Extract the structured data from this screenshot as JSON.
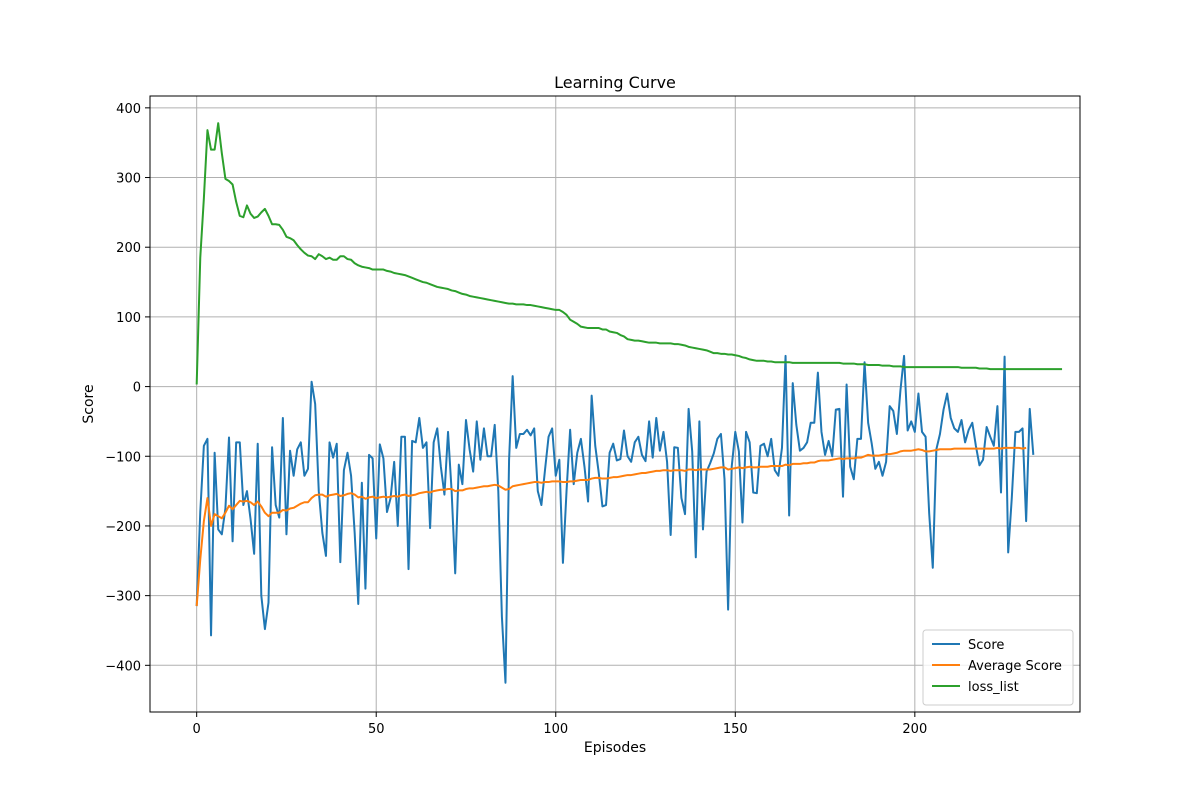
{
  "chart_data": {
    "type": "line",
    "title": "Learning Curve",
    "xlabel": "Episodes",
    "ylabel": "Score",
    "xlim": [
      -13,
      246
    ],
    "ylim": [
      -467,
      417
    ],
    "xticks": [
      0,
      50,
      100,
      150,
      200
    ],
    "yticks": [
      -400,
      -300,
      -200,
      -100,
      0,
      100,
      200,
      300,
      400
    ],
    "grid": true,
    "legend_position": "lower right",
    "series": [
      {
        "name": "Score",
        "color": "#1f77b4",
        "x_start": 0,
        "values": [
          -315,
          -180,
          -85,
          -75,
          -357,
          -95,
          -205,
          -212,
          -175,
          -73,
          -222,
          -80,
          -80,
          -170,
          -150,
          -190,
          -240,
          -82,
          -300,
          -348,
          -310,
          -87,
          -170,
          -188,
          -45,
          -212,
          -92,
          -128,
          -90,
          -80,
          -128,
          -118,
          7,
          -25,
          -150,
          -210,
          -243,
          -80,
          -102,
          -82,
          -252,
          -120,
          -95,
          -128,
          -210,
          -312,
          -138,
          -290,
          -98,
          -103,
          -218,
          -83,
          -103,
          -180,
          -160,
          -108,
          -200,
          -72,
          -72,
          -262,
          -78,
          -80,
          -45,
          -88,
          -80,
          -203,
          -80,
          -60,
          -115,
          -155,
          -65,
          -150,
          -268,
          -112,
          -140,
          -48,
          -90,
          -122,
          -50,
          -105,
          -60,
          -100,
          -100,
          -55,
          -150,
          -330,
          -425,
          -105,
          15,
          -88,
          -68,
          -68,
          -62,
          -70,
          -60,
          -150,
          -170,
          -120,
          -72,
          -60,
          -128,
          -105,
          -253,
          -150,
          -62,
          -140,
          -95,
          -75,
          -115,
          -165,
          -13,
          -85,
          -125,
          -172,
          -170,
          -95,
          -82,
          -106,
          -104,
          -63,
          -100,
          -108,
          -80,
          -72,
          -98,
          -107,
          -50,
          -102,
          -45,
          -92,
          -65,
          -108,
          -213,
          -87,
          -88,
          -160,
          -183,
          -32,
          -93,
          -245,
          -50,
          -205,
          -122,
          -110,
          -96,
          -75,
          -68,
          -133,
          -320,
          -115,
          -65,
          -93,
          -195,
          -65,
          -80,
          -152,
          -153,
          -85,
          -82,
          -100,
          -75,
          -120,
          -128,
          -88,
          44,
          -185,
          5,
          -55,
          -92,
          -88,
          -80,
          -52,
          -52,
          20,
          -65,
          -98,
          -78,
          -100,
          -33,
          -32,
          -158,
          3,
          -115,
          -133,
          -75,
          -75,
          35,
          -52,
          -82,
          -118,
          -108,
          -128,
          -108,
          -28,
          -35,
          -68,
          -5,
          44,
          -63,
          -50,
          -65,
          -10,
          -65,
          -72,
          -182,
          -260,
          -90,
          -68,
          -33,
          -10,
          -45,
          -60,
          -65,
          -48,
          -80,
          -62,
          -52,
          -85,
          -113,
          -105,
          -58,
          -72,
          -85,
          -28,
          -152,
          43,
          -238,
          -160,
          -65,
          -65,
          -60,
          -193,
          -32,
          -98
        ]
      },
      {
        "name": "Average Score",
        "color": "#ff7f0e",
        "x_start": 0,
        "values": [
          -315,
          -248,
          -193,
          -160,
          -200,
          -183,
          -186,
          -189,
          -181,
          -171,
          -176,
          -170,
          -164,
          -165,
          -164,
          -166,
          -170,
          -165,
          -172,
          -181,
          -186,
          -181,
          -181,
          -181,
          -177,
          -178,
          -175,
          -174,
          -171,
          -168,
          -166,
          -166,
          -160,
          -156,
          -155,
          -155,
          -158,
          -156,
          -155,
          -154,
          -157,
          -156,
          -154,
          -153,
          -155,
          -159,
          -158,
          -161,
          -159,
          -158,
          -160,
          -159,
          -158,
          -159,
          -158,
          -157,
          -158,
          -156,
          -155,
          -157,
          -156,
          -155,
          -153,
          -152,
          -151,
          -152,
          -150,
          -149,
          -148,
          -148,
          -147,
          -147,
          -150,
          -149,
          -149,
          -147,
          -146,
          -146,
          -145,
          -144,
          -143,
          -143,
          -142,
          -141,
          -142,
          -145,
          -148,
          -147,
          -143,
          -142,
          -141,
          -140,
          -139,
          -138,
          -137,
          -137,
          -138,
          -137,
          -137,
          -136,
          -136,
          -136,
          -137,
          -137,
          -136,
          -136,
          -135,
          -134,
          -134,
          -134,
          -132,
          -131,
          -131,
          -132,
          -132,
          -131,
          -130,
          -130,
          -129,
          -128,
          -127,
          -127,
          -126,
          -125,
          -124,
          -124,
          -123,
          -122,
          -121,
          -121,
          -120,
          -120,
          -121,
          -120,
          -120,
          -120,
          -121,
          -119,
          -119,
          -120,
          -119,
          -119,
          -119,
          -119,
          -118,
          -117,
          -116,
          -116,
          -119,
          -118,
          -117,
          -116,
          -117,
          -116,
          -115,
          -116,
          -116,
          -115,
          -115,
          -115,
          -114,
          -114,
          -114,
          -114,
          -112,
          -113,
          -111,
          -111,
          -111,
          -110,
          -110,
          -109,
          -109,
          -107,
          -106,
          -106,
          -106,
          -105,
          -104,
          -103,
          -104,
          -103,
          -103,
          -103,
          -102,
          -102,
          -100,
          -98,
          -99,
          -99,
          -99,
          -98,
          -97,
          -97,
          -96,
          -95,
          -93,
          -92,
          -92,
          -92,
          -91,
          -90,
          -91,
          -93,
          -93,
          -92,
          -91,
          -90,
          -90,
          -90,
          -90,
          -89,
          -89,
          -89,
          -89,
          -89,
          -89,
          -89,
          -89,
          -89,
          -89,
          -89,
          -89,
          -88,
          -89,
          -88,
          -88,
          -88,
          -88,
          -88,
          -89,
          -88
        ]
      },
      {
        "name": "loss_list",
        "color": "#2ca02c",
        "x_start": 0,
        "values": [
          3,
          185,
          270,
          368,
          340,
          340,
          378,
          335,
          298,
          295,
          290,
          265,
          245,
          243,
          260,
          248,
          242,
          244,
          250,
          255,
          245,
          233,
          233,
          232,
          225,
          215,
          213,
          210,
          203,
          197,
          192,
          188,
          187,
          183,
          190,
          187,
          183,
          185,
          182,
          182,
          187,
          187,
          183,
          182,
          177,
          174,
          172,
          171,
          170,
          168,
          168,
          168,
          168,
          166,
          165,
          163,
          162,
          161,
          160,
          158,
          156,
          154,
          152,
          150,
          149,
          147,
          145,
          143,
          142,
          141,
          140,
          138,
          137,
          135,
          133,
          132,
          130,
          129,
          128,
          127,
          126,
          125,
          124,
          123,
          122,
          121,
          120,
          119,
          119,
          118,
          118,
          118,
          117,
          117,
          116,
          115,
          114,
          113,
          112,
          111,
          110,
          110,
          107,
          103,
          96,
          93,
          90,
          86,
          85,
          84,
          84,
          84,
          84,
          82,
          82,
          79,
          78,
          77,
          74,
          72,
          68,
          67,
          66,
          66,
          65,
          64,
          63,
          63,
          63,
          62,
          62,
          62,
          62,
          61,
          61,
          60,
          59,
          57,
          56,
          55,
          54,
          53,
          52,
          50,
          48,
          48,
          47,
          47,
          46,
          46,
          45,
          44,
          42,
          41,
          39,
          38,
          37,
          37,
          37,
          36,
          36,
          35,
          35,
          35,
          35,
          35,
          34,
          34,
          34,
          34,
          34,
          34,
          34,
          34,
          34,
          34,
          34,
          34,
          34,
          34,
          33,
          33,
          33,
          33,
          32,
          32,
          32,
          31,
          31,
          31,
          31,
          30,
          30,
          30,
          29,
          29,
          29,
          28,
          28,
          28,
          28,
          28,
          28,
          28,
          28,
          28,
          28,
          28,
          28,
          28,
          28,
          28,
          28,
          27,
          27,
          27,
          27,
          27,
          26,
          26,
          26,
          25,
          25,
          25,
          25,
          25,
          25,
          25,
          25,
          25,
          25,
          25,
          25,
          25,
          25,
          25,
          25,
          25,
          25,
          25,
          25,
          25
        ]
      }
    ]
  }
}
